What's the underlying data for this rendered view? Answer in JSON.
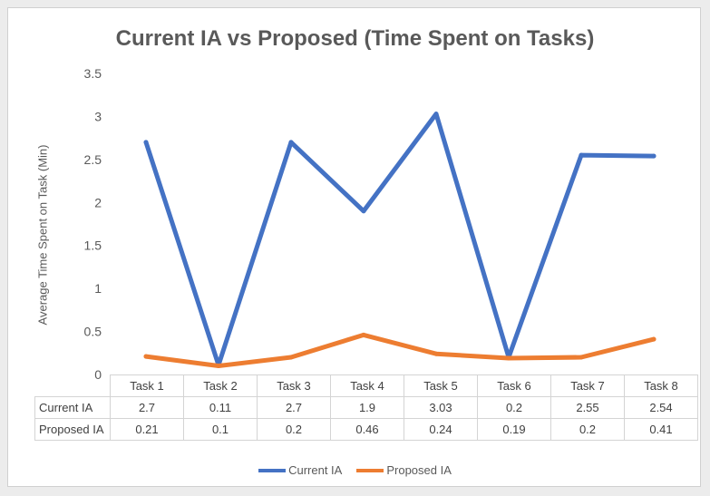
{
  "chart_data": {
    "type": "line",
    "title": "Current IA vs Proposed (Time Spent on Tasks)",
    "xlabel": "",
    "ylabel": "Average Time Spent on Task (Min)",
    "categories": [
      "Task 1",
      "Task 2",
      "Task 3",
      "Task 4",
      "Task 5",
      "Task 6",
      "Task 7",
      "Task 8"
    ],
    "yticks": [
      "0",
      "0.5",
      "1",
      "1.5",
      "2",
      "2.5",
      "3",
      "3.5"
    ],
    "ylim": [
      0,
      3.5
    ],
    "grid": false,
    "legend_position": "bottom",
    "data_table": true,
    "series": [
      {
        "name": "Current IA",
        "color": "#4472c4",
        "values": [
          2.7,
          0.11,
          2.7,
          1.9,
          3.03,
          0.2,
          2.55,
          2.54
        ],
        "labels": [
          "2.7",
          "0.11",
          "2.7",
          "1.9",
          "3.03",
          "0.2",
          "2.55",
          "2.54"
        ]
      },
      {
        "name": "Proposed IA",
        "color": "#ed7d31",
        "values": [
          0.21,
          0.1,
          0.2,
          0.46,
          0.24,
          0.19,
          0.2,
          0.41
        ],
        "labels": [
          "0.21",
          "0.1",
          "0.2",
          "0.46",
          "0.24",
          "0.19",
          "0.2",
          "0.41"
        ]
      }
    ]
  }
}
